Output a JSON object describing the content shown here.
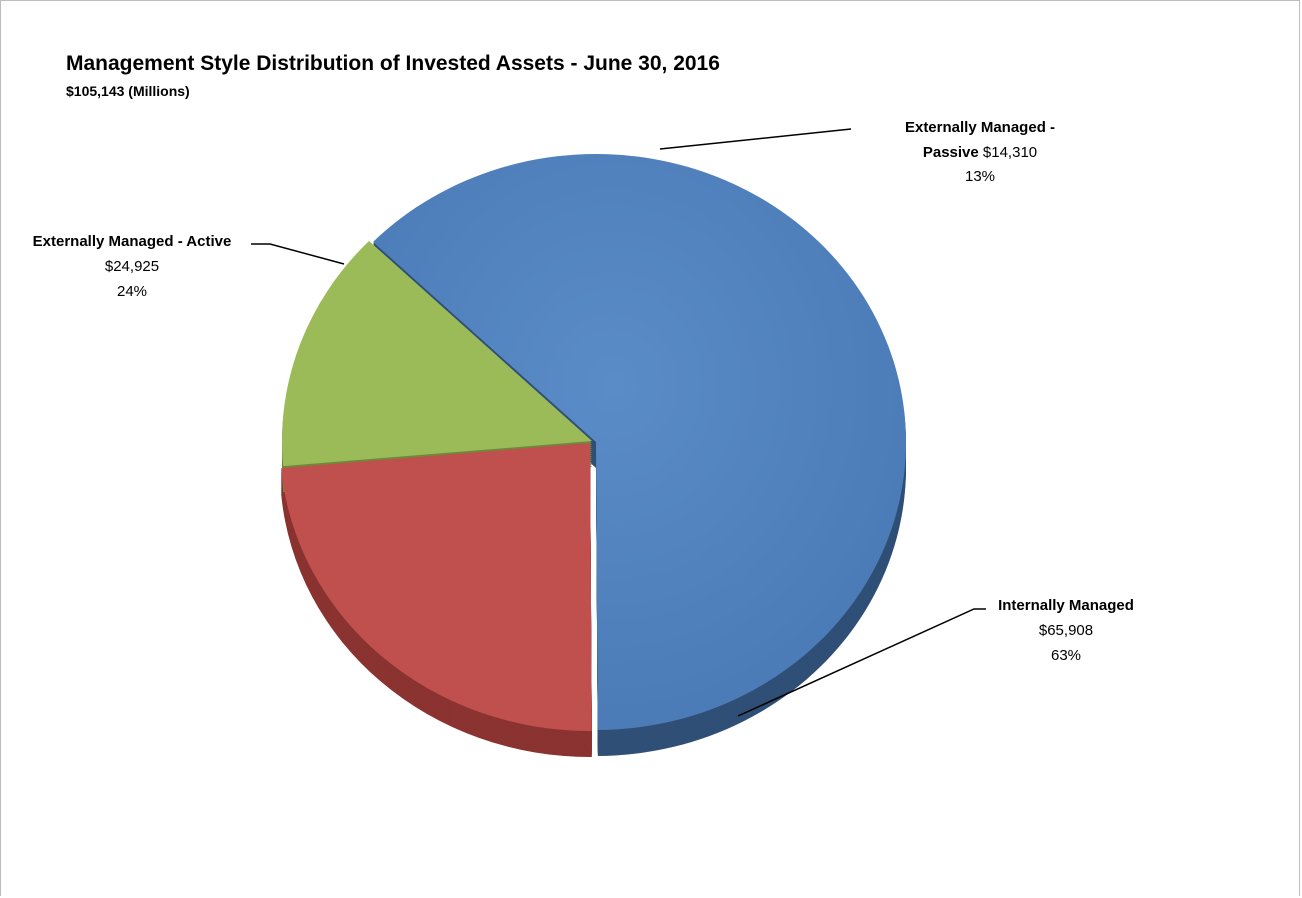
{
  "chart_data": {
    "type": "pie",
    "title": "Management Style Distribution of Invested Assets - June 30, 2016",
    "subtitle": "$105,143 (Millions)",
    "slices": [
      {
        "name": "Internally Managed",
        "value": 65908,
        "value_label": "$65,908",
        "percent_label": "63%",
        "color": "#4f81bd"
      },
      {
        "name": "Externally Managed - Active",
        "value": 24925,
        "value_label": "$24,925",
        "percent_label": "24%",
        "color": "#c0504d"
      },
      {
        "name": "Externally Managed - Passive",
        "value": 14310,
        "value_label": "$14,310",
        "percent_label": "13%",
        "color": "#9bbb59"
      }
    ],
    "labels": {
      "passive_line1": "Externally Managed -",
      "passive_name2": "Passive",
      "passive_value": "$14,310",
      "passive_pct": "13%",
      "active_name": "Externally Managed - Active",
      "active_value": "$24,925",
      "active_pct": "24%",
      "internal_name": "Internally Managed",
      "internal_value": "$65,908",
      "internal_pct": "63%"
    }
  }
}
